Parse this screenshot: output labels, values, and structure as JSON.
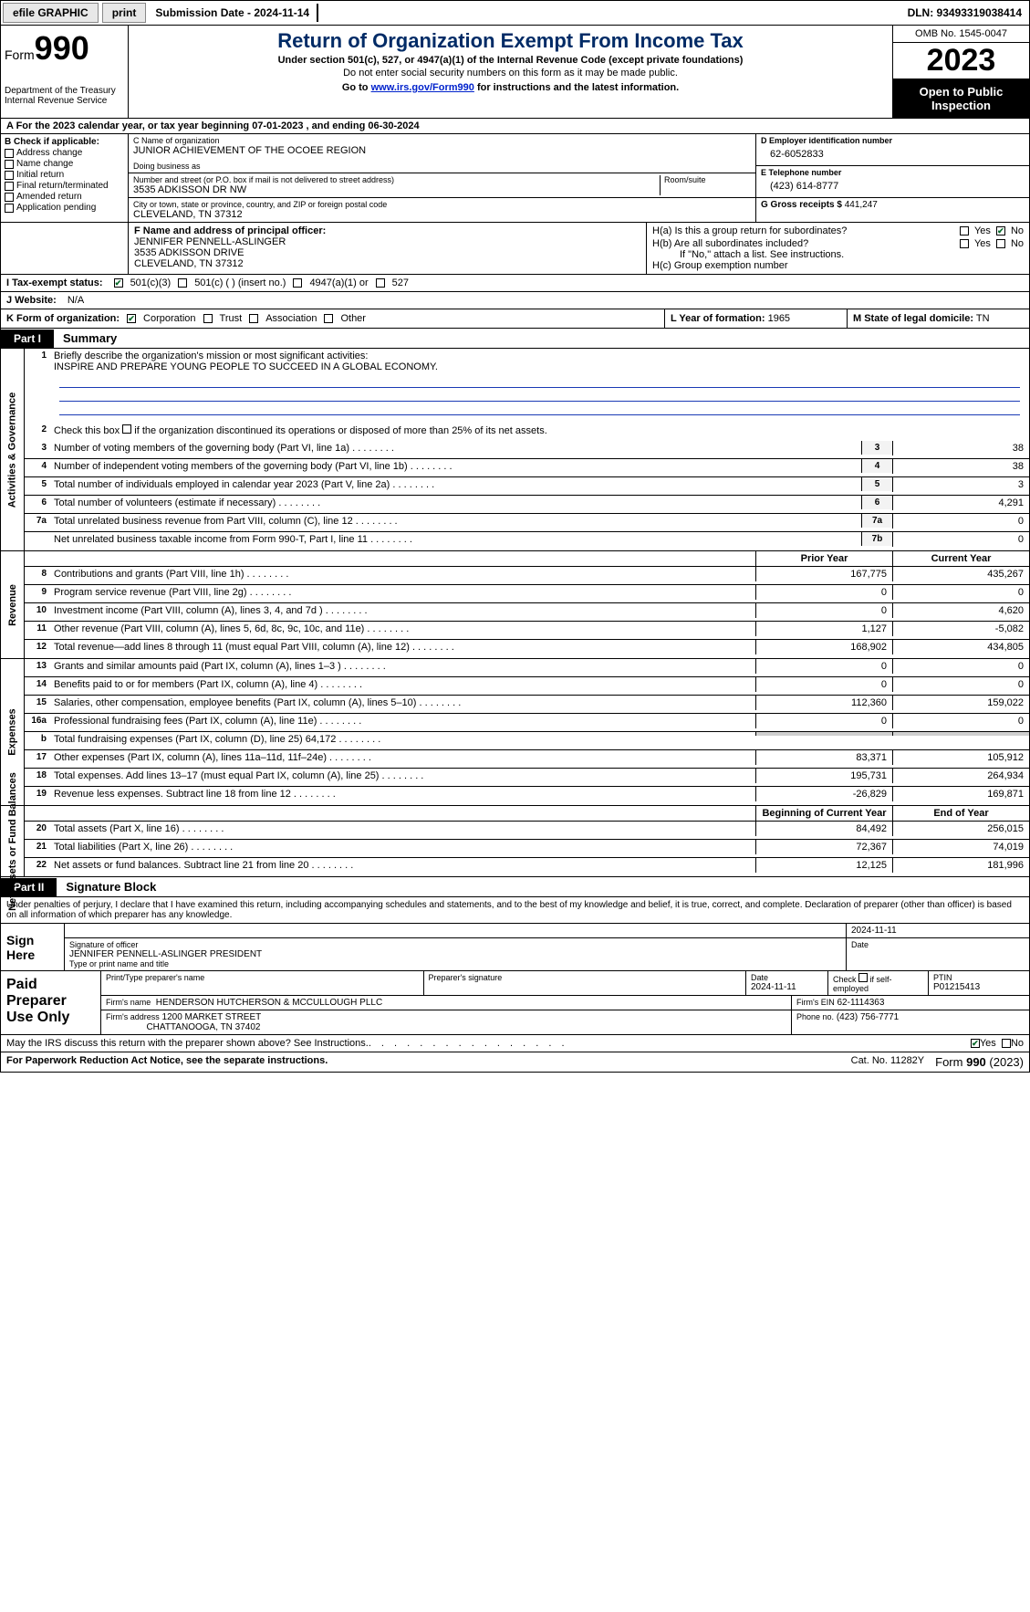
{
  "topbar": {
    "efile": "efile GRAPHIC",
    "print": "print",
    "submission": "Submission Date - 2024-11-14",
    "dln": "DLN: 93493319038414"
  },
  "header": {
    "form_word": "Form",
    "form_num": "990",
    "dept": "Department of the Treasury",
    "irs": "Internal Revenue Service",
    "title": "Return of Organization Exempt From Income Tax",
    "sub1": "Under section 501(c), 527, or 4947(a)(1) of the Internal Revenue Code (except private foundations)",
    "sub2": "Do not enter social security numbers on this form as it may be made public.",
    "sub3_pre": "Go to ",
    "sub3_link": "www.irs.gov/Form990",
    "sub3_post": " for instructions and the latest information.",
    "omb": "OMB No. 1545-0047",
    "year": "2023",
    "open": "Open to Public Inspection"
  },
  "lineA": "A  For the 2023 calendar year, or tax year beginning 07-01-2023   , and ending 06-30-2024",
  "boxB": {
    "title": "B Check if applicable:",
    "items": [
      "Address change",
      "Name change",
      "Initial return",
      "Final return/terminated",
      "Amended return",
      "Application pending"
    ]
  },
  "boxC": {
    "name_lbl": "C Name of organization",
    "name": "JUNIOR ACHIEVEMENT OF THE OCOEE REGION",
    "dba_lbl": "Doing business as",
    "addr_lbl": "Number and street (or P.O. box if mail is not delivered to street address)",
    "addr": "3535 ADKISSON DR NW",
    "room_lbl": "Room/suite",
    "city_lbl": "City or town, state or province, country, and ZIP or foreign postal code",
    "city": "CLEVELAND, TN  37312"
  },
  "boxD": {
    "lbl": "D Employer identification number",
    "val": "62-6052833"
  },
  "boxE": {
    "lbl": "E Telephone number",
    "val": "(423) 614-8777"
  },
  "boxG": {
    "lbl": "G Gross receipts $",
    "val": "441,247"
  },
  "boxF": {
    "lbl": "F  Name and address of principal officer:",
    "l1": "JENNIFER PENNELL-ASLINGER",
    "l2": "3535 ADKISSON DRIVE",
    "l3": "CLEVELAND, TN  37312"
  },
  "boxH": {
    "a": "H(a)  Is this a group return for subordinates?",
    "a_yes": "Yes",
    "a_no": "No",
    "a_checked": "no",
    "b": "H(b)  Are all subordinates included?",
    "b_yes": "Yes",
    "b_no": "No",
    "b_note": "If \"No,\" attach a list. See instructions.",
    "c": "H(c)  Group exemption number"
  },
  "rowI": {
    "lbl": "I   Tax-exempt status:",
    "o1": "501(c)(3)",
    "o1_checked": true,
    "o2": "501(c) (  ) (insert no.)",
    "o3": "4947(a)(1) or",
    "o4": "527"
  },
  "rowJ": {
    "lbl": "J   Website:",
    "val": "N/A"
  },
  "rowK": {
    "lbl": "K Form of organization:",
    "o1": "Corporation",
    "o1_checked": true,
    "o2": "Trust",
    "o3": "Association",
    "o4": "Other"
  },
  "rowL": {
    "lbl": "L Year of formation:",
    "val": "1965"
  },
  "rowM": {
    "lbl": "M State of legal domicile:",
    "val": "TN"
  },
  "part1": {
    "tab": "Part I",
    "title": "Summary"
  },
  "gov": {
    "label": "Activities & Governance",
    "l1_lbl": "Briefly describe the organization's mission or most significant activities:",
    "l1_val": "INSPIRE AND PREPARE YOUNG PEOPLE TO SUCCEED IN A GLOBAL ECONOMY.",
    "l2": "Check this box       if the organization discontinued its operations or disposed of more than 25% of its net assets.",
    "rows": [
      {
        "n": "3",
        "t": "Number of voting members of the governing body (Part VI, line 1a)",
        "b": "3",
        "v": "38"
      },
      {
        "n": "4",
        "t": "Number of independent voting members of the governing body (Part VI, line 1b)",
        "b": "4",
        "v": "38"
      },
      {
        "n": "5",
        "t": "Total number of individuals employed in calendar year 2023 (Part V, line 2a)",
        "b": "5",
        "v": "3"
      },
      {
        "n": "6",
        "t": "Total number of volunteers (estimate if necessary)",
        "b": "6",
        "v": "4,291"
      },
      {
        "n": "7a",
        "t": "Total unrelated business revenue from Part VIII, column (C), line 12",
        "b": "7a",
        "v": "0"
      },
      {
        "n": "",
        "t": "Net unrelated business taxable income from Form 990-T, Part I, line 11",
        "b": "7b",
        "v": "0"
      }
    ]
  },
  "rev": {
    "label": "Revenue",
    "hdr_prior": "Prior Year",
    "hdr_curr": "Current Year",
    "rows": [
      {
        "n": "8",
        "t": "Contributions and grants (Part VIII, line 1h)",
        "p": "167,775",
        "c": "435,267"
      },
      {
        "n": "9",
        "t": "Program service revenue (Part VIII, line 2g)",
        "p": "0",
        "c": "0"
      },
      {
        "n": "10",
        "t": "Investment income (Part VIII, column (A), lines 3, 4, and 7d )",
        "p": "0",
        "c": "4,620"
      },
      {
        "n": "11",
        "t": "Other revenue (Part VIII, column (A), lines 5, 6d, 8c, 9c, 10c, and 11e)",
        "p": "1,127",
        "c": "-5,082"
      },
      {
        "n": "12",
        "t": "Total revenue—add lines 8 through 11 (must equal Part VIII, column (A), line 12)",
        "p": "168,902",
        "c": "434,805"
      }
    ]
  },
  "exp": {
    "label": "Expenses",
    "rows": [
      {
        "n": "13",
        "t": "Grants and similar amounts paid (Part IX, column (A), lines 1–3 )",
        "p": "0",
        "c": "0"
      },
      {
        "n": "14",
        "t": "Benefits paid to or for members (Part IX, column (A), line 4)",
        "p": "0",
        "c": "0"
      },
      {
        "n": "15",
        "t": "Salaries, other compensation, employee benefits (Part IX, column (A), lines 5–10)",
        "p": "112,360",
        "c": "159,022"
      },
      {
        "n": "16a",
        "t": "Professional fundraising fees (Part IX, column (A), line 11e)",
        "p": "0",
        "c": "0"
      },
      {
        "n": "b",
        "t": "Total fundraising expenses (Part IX, column (D), line 25) 64,172",
        "p": "",
        "c": "",
        "gray": true
      },
      {
        "n": "17",
        "t": "Other expenses (Part IX, column (A), lines 11a–11d, 11f–24e)",
        "p": "83,371",
        "c": "105,912"
      },
      {
        "n": "18",
        "t": "Total expenses. Add lines 13–17 (must equal Part IX, column (A), line 25)",
        "p": "195,731",
        "c": "264,934"
      },
      {
        "n": "19",
        "t": "Revenue less expenses. Subtract line 18 from line 12",
        "p": "-26,829",
        "c": "169,871"
      }
    ]
  },
  "net": {
    "label": "Net Assets or Fund Balances",
    "hdr_prior": "Beginning of Current Year",
    "hdr_curr": "End of Year",
    "rows": [
      {
        "n": "20",
        "t": "Total assets (Part X, line 16)",
        "p": "84,492",
        "c": "256,015"
      },
      {
        "n": "21",
        "t": "Total liabilities (Part X, line 26)",
        "p": "72,367",
        "c": "74,019"
      },
      {
        "n": "22",
        "t": "Net assets or fund balances. Subtract line 21 from line 20",
        "p": "12,125",
        "c": "181,996"
      }
    ]
  },
  "part2": {
    "tab": "Part II",
    "title": "Signature Block"
  },
  "sig_intro": "Under penalties of perjury, I declare that I have examined this return, including accompanying schedules and statements, and to the best of my knowledge and belief, it is true, correct, and complete. Declaration of preparer (other than officer) is based on all information of which preparer has any knowledge.",
  "sign": {
    "lbl": "Sign Here",
    "date": "2024-11-11",
    "sig_lbl": "Signature of officer",
    "date_lbl": "Date",
    "name": "JENNIFER PENNELL-ASLINGER  PRESIDENT",
    "name_lbl": "Type or print name and title"
  },
  "prep": {
    "lbl": "Paid Preparer Use Only",
    "h1": "Print/Type preparer's name",
    "h2": "Preparer's signature",
    "h3": "Date",
    "h3v": "2024-11-11",
    "h4": "Check        if self-employed",
    "h5": "PTIN",
    "h5v": "P01215413",
    "firm_lbl": "Firm's name",
    "firm": "HENDERSON HUTCHERSON & MCCULLOUGH PLLC",
    "ein_lbl": "Firm's EIN",
    "ein": "62-1114363",
    "addr_lbl": "Firm's address",
    "addr1": "1200 MARKET STREET",
    "addr2": "CHATTANOOGA, TN  37402",
    "phone_lbl": "Phone no.",
    "phone": "(423) 756-7771"
  },
  "discuss": {
    "text": "May the IRS discuss this return with the preparer shown above? See Instructions.",
    "yes": "Yes",
    "no": "No",
    "checked": "yes"
  },
  "footer": {
    "l": "For Paperwork Reduction Act Notice, see the separate instructions.",
    "c": "Cat. No. 11282Y",
    "r_pre": "Form ",
    "r_b": "990",
    "r_post": " (2023)"
  }
}
